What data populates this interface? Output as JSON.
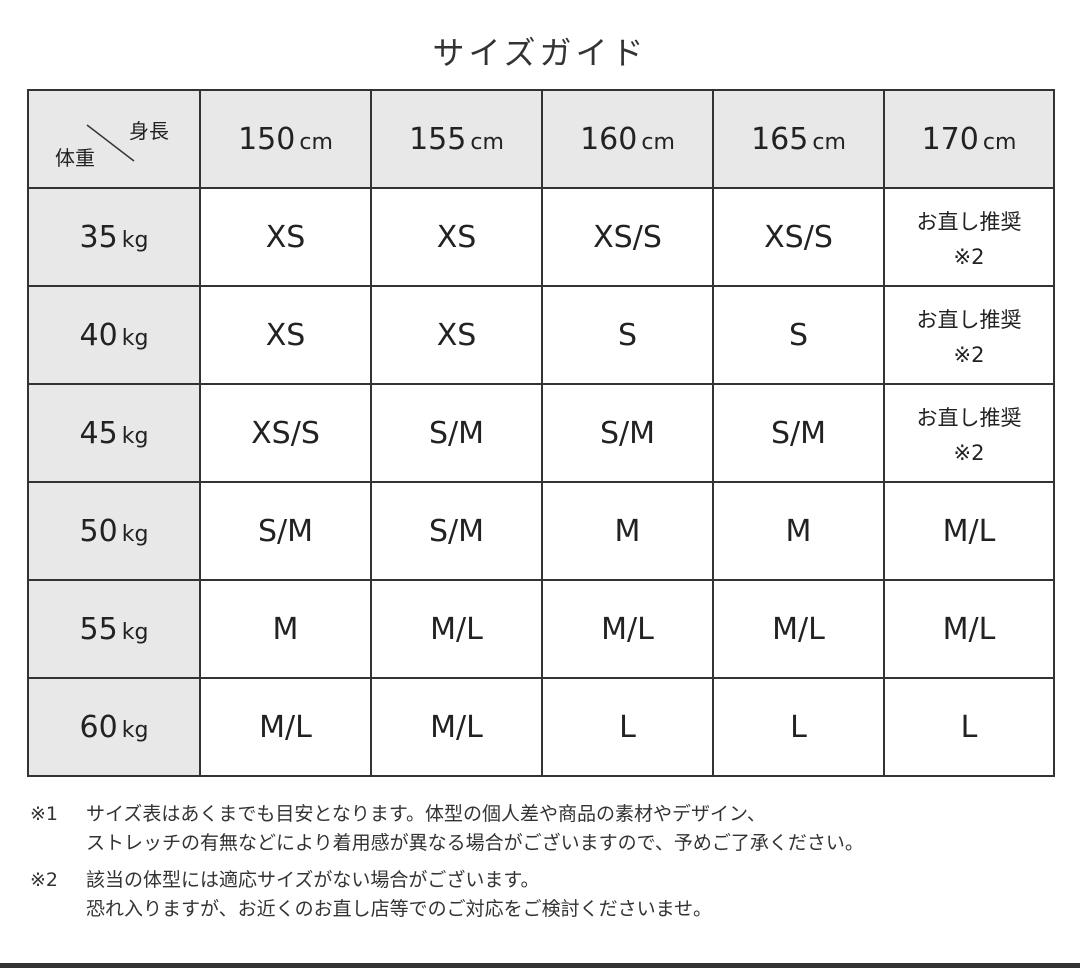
{
  "title": "サイズガイド",
  "corner": {
    "height_label": "身長",
    "weight_label": "体重"
  },
  "height_unit": "cm",
  "weight_unit": "kg",
  "heights": [
    "150",
    "155",
    "160",
    "165",
    "170"
  ],
  "rows": [
    {
      "weight": "35",
      "sizes": [
        "XS",
        "XS",
        "XS/S",
        "XS/S",
        "お直し推奨\n※2"
      ]
    },
    {
      "weight": "40",
      "sizes": [
        "XS",
        "XS",
        "S",
        "S",
        "お直し推奨\n※2"
      ]
    },
    {
      "weight": "45",
      "sizes": [
        "XS/S",
        "S/M",
        "S/M",
        "S/M",
        "お直し推奨\n※2"
      ]
    },
    {
      "weight": "50",
      "sizes": [
        "S/M",
        "S/M",
        "M",
        "M",
        "M/L"
      ]
    },
    {
      "weight": "55",
      "sizes": [
        "M",
        "M/L",
        "M/L",
        "M/L",
        "M/L"
      ]
    },
    {
      "weight": "60",
      "sizes": [
        "M/L",
        "M/L",
        "L",
        "L",
        "L"
      ]
    }
  ],
  "footnotes": [
    {
      "mark": "※1",
      "lines": [
        "サイズ表はあくまでも目安となります。体型の個人差や商品の素材やデザイン、",
        "ストレッチの有無などにより着用感が異なる場合がございますので、予めご了承ください。"
      ]
    },
    {
      "mark": "※2",
      "lines": [
        "該当の体型には適応サイズがない場合がございます。",
        "恐れ入りますが、お近くのお直し店等でのご対応をご検討くださいませ。"
      ]
    }
  ]
}
